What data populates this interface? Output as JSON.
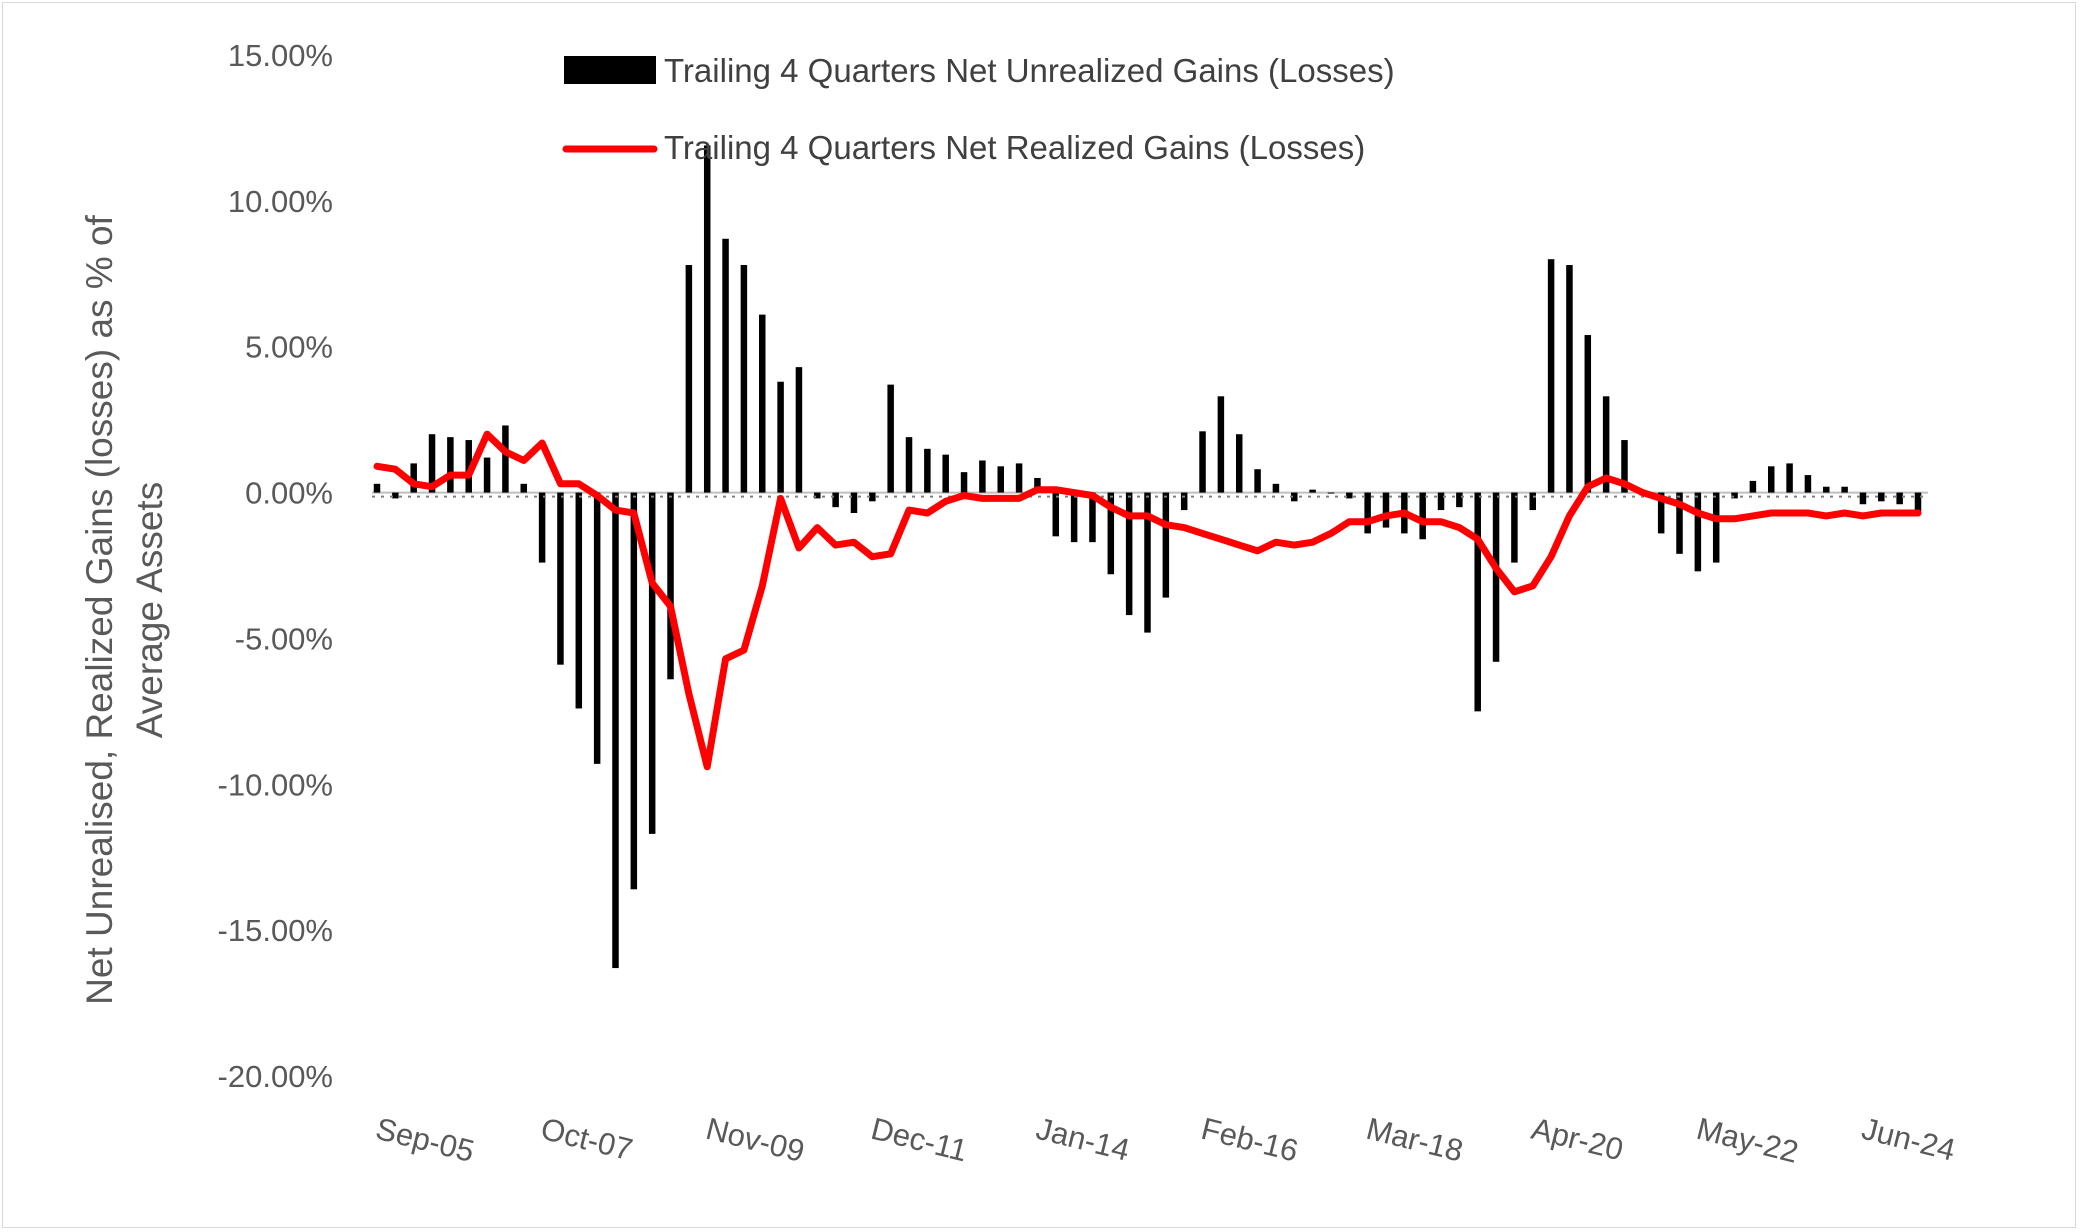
{
  "chart_data": {
    "type": "bar+line",
    "y_axis_label_lines": [
      "Net Unrealised, Realized Gains (losses) as % of",
      "Average Assets"
    ],
    "ylim": [
      -20,
      15
    ],
    "y_ticks": [
      15,
      10,
      5,
      0,
      -5,
      -10,
      -15,
      -20
    ],
    "y_tick_labels": [
      "15.00%",
      "10.00%",
      "5.00%",
      "0.00%",
      "-5.00%",
      "-10.00%",
      "-15.00%",
      "-20.00%"
    ],
    "x_tick_labels": [
      "Sep-05",
      "Oct-07",
      "Nov-09",
      "Dec-11",
      "Jan-14",
      "Feb-16",
      "Mar-18",
      "Apr-20",
      "May-22",
      "Jun-24"
    ],
    "x_tick_index": [
      0,
      9,
      18,
      27,
      36,
      45,
      54,
      63,
      72,
      81
    ],
    "legend_position": "top",
    "gridlines": false,
    "colors": {
      "bars": "#000000",
      "line": "#ff0000",
      "text": "#595959",
      "zero_line": "#bfbfbf"
    },
    "series": [
      {
        "name": "Trailing 4 Quarters Net Unrealized Gains (Losses)",
        "kind": "bar",
        "values": [
          0.3,
          -0.2,
          1.0,
          2.0,
          1.9,
          1.8,
          1.2,
          2.3,
          0.3,
          -2.4,
          -5.9,
          -7.4,
          -9.3,
          -16.3,
          -13.6,
          -11.7,
          -6.4,
          7.8,
          11.9,
          8.7,
          7.8,
          6.1,
          3.8,
          4.3,
          -0.2,
          -0.5,
          -0.7,
          -0.3,
          3.7,
          1.9,
          1.5,
          1.3,
          0.7,
          1.1,
          0.9,
          1.0,
          0.5,
          -1.5,
          -1.7,
          -1.7,
          -2.8,
          -4.2,
          -4.8,
          -3.6,
          -0.6,
          2.1,
          3.3,
          2.0,
          0.8,
          0.3,
          -0.3,
          0.1,
          0.0,
          -0.2,
          -1.4,
          -1.2,
          -1.4,
          -1.6,
          -0.6,
          -0.5,
          -7.5,
          -5.8,
          -2.4,
          -0.6,
          8.0,
          7.8,
          5.4,
          3.3,
          1.8,
          -0.1,
          -1.4,
          -2.1,
          -2.7,
          -2.4,
          -0.2,
          0.4,
          0.9,
          1.0,
          0.6,
          0.2,
          0.2,
          -0.4,
          -0.3,
          -0.4,
          -0.7
        ],
        "color": "#000000"
      },
      {
        "name": "Trailing 4 Quarters Net Realized Gains (Losses)",
        "kind": "line",
        "values": [
          0.9,
          0.8,
          0.3,
          0.2,
          0.6,
          0.6,
          2.0,
          1.4,
          1.1,
          1.7,
          0.3,
          0.3,
          -0.1,
          -0.6,
          -0.7,
          -3.1,
          -3.9,
          -6.9,
          -9.4,
          -5.7,
          -5.4,
          -3.2,
          -0.2,
          -1.9,
          -1.2,
          -1.8,
          -1.7,
          -2.2,
          -2.1,
          -0.6,
          -0.7,
          -0.3,
          -0.1,
          -0.2,
          -0.2,
          -0.2,
          0.1,
          0.1,
          0.0,
          -0.1,
          -0.5,
          -0.8,
          -0.8,
          -1.1,
          -1.2,
          -1.4,
          -1.6,
          -1.8,
          -2.0,
          -1.7,
          -1.8,
          -1.7,
          -1.4,
          -1.0,
          -1.0,
          -0.8,
          -0.7,
          -1.0,
          -1.0,
          -1.2,
          -1.6,
          -2.6,
          -3.4,
          -3.2,
          -2.2,
          -0.8,
          0.2,
          0.5,
          0.3,
          0.0,
          -0.2,
          -0.4,
          -0.7,
          -0.9,
          -0.9,
          -0.8,
          -0.7,
          -0.7,
          -0.7,
          -0.8,
          -0.7,
          -0.8,
          -0.7,
          -0.7,
          -0.7
        ],
        "color": "#ff0000"
      }
    ]
  }
}
